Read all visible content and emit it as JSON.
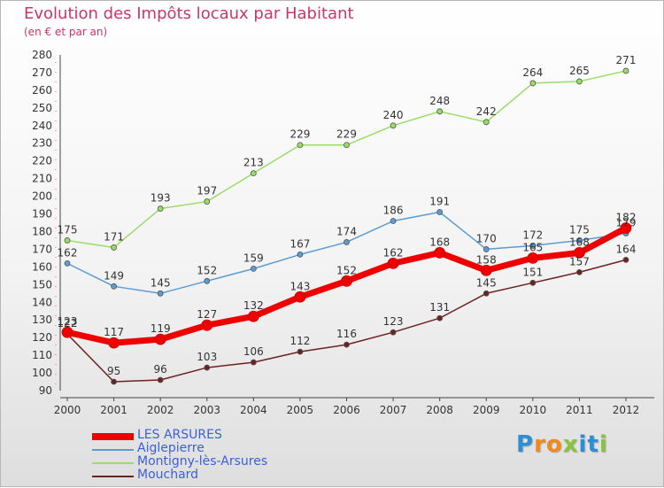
{
  "header": {
    "title": "Evolution des Impôts locaux par Habitant",
    "subtitle": "(en € et par an)"
  },
  "brand": {
    "letters": [
      "P",
      "r",
      "o",
      "x",
      "i",
      "t",
      "i"
    ],
    "colors": [
      "#2c8fd6",
      "#f08a1c",
      "#f08a1c",
      "#8ac43f",
      "#2c8fd6",
      "#2c8fd6",
      "#8ac43f"
    ]
  },
  "chart_data": {
    "type": "line",
    "x": [
      "2000",
      "2001",
      "2002",
      "2003",
      "2004",
      "2005",
      "2006",
      "2007",
      "2008",
      "2009",
      "2010",
      "2011",
      "2012"
    ],
    "ylim": [
      90,
      280
    ],
    "yticks": [
      90,
      100,
      110,
      120,
      130,
      140,
      150,
      160,
      170,
      180,
      190,
      200,
      210,
      220,
      230,
      240,
      250,
      260,
      270,
      280
    ],
    "grid": false,
    "legend_position": "bottom-left",
    "series": [
      {
        "name": "LES ARSURES",
        "color": "#ee0000",
        "values": [
          123,
          117,
          119,
          127,
          132,
          143,
          152,
          162,
          168,
          158,
          165,
          168,
          182
        ]
      },
      {
        "name": "Aiglepierre",
        "color": "#5b9cd2",
        "values": [
          162,
          149,
          145,
          152,
          159,
          167,
          174,
          186,
          191,
          170,
          172,
          175,
          179
        ]
      },
      {
        "name": "Montigny-lès-Arsures",
        "color": "#99dd66",
        "values": [
          175,
          171,
          193,
          197,
          213,
          229,
          229,
          240,
          248,
          242,
          264,
          265,
          271
        ]
      },
      {
        "name": "Mouchard",
        "color": "#6b2222",
        "values": [
          122,
          95,
          96,
          103,
          106,
          112,
          116,
          123,
          131,
          145,
          151,
          157,
          164
        ]
      }
    ]
  }
}
